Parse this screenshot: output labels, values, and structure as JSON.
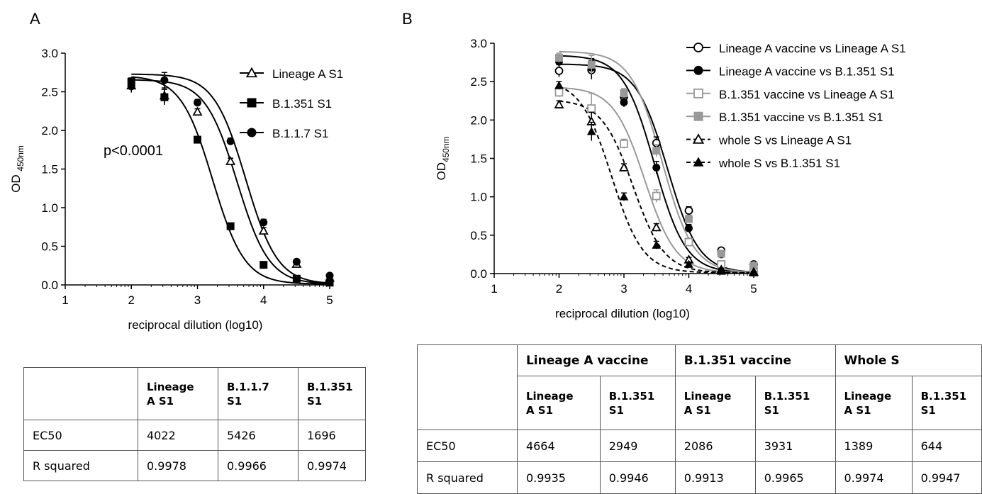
{
  "panel_a": {
    "letter": "A",
    "annotation": "p<0.0001",
    "table": {
      "headers": [
        "",
        "Lineage\nA S1",
        "B.1.1.7\nS1",
        "B.1.351\nS1"
      ],
      "rows": [
        {
          "label": "EC50",
          "values": [
            "4022",
            "5426",
            "1696"
          ]
        },
        {
          "label": "R squared",
          "values": [
            "0.9978",
            "0.9966",
            "0.9974"
          ]
        }
      ]
    }
  },
  "panel_b": {
    "letter": "B",
    "table": {
      "groups": [
        "Lineage A vaccine",
        "B.1.351 vaccine",
        "Whole S"
      ],
      "subheaders": [
        "Lineage\nA S1",
        "B.1.351\nS1",
        "Lineage\nA S1",
        "B.1.351\nS1",
        "Lineage\nA S1",
        "B.1.351\nS1"
      ],
      "rows": [
        {
          "label": "EC50",
          "values": [
            "4664",
            "2949",
            "2086",
            "3931",
            "1389",
            "644"
          ]
        },
        {
          "label": "R squared",
          "values": [
            "0.9935",
            "0.9946",
            "0.9913",
            "0.9965",
            "0.9974",
            "0.9947"
          ]
        }
      ]
    }
  },
  "chart_data": [
    {
      "type": "line",
      "panel": "A",
      "xlabel": "reciprocal dilution (log10)",
      "ylabel": "OD 450nm",
      "xlim": [
        1,
        5
      ],
      "ylim": [
        0,
        3.0
      ],
      "xticks": [
        "1",
        "2",
        "3",
        "4",
        "5"
      ],
      "yticks": [
        "0.0",
        "0.5",
        "1.0",
        "1.5",
        "2.0",
        "2.5",
        "3.0"
      ],
      "legend_position": "top-right",
      "series": [
        {
          "name": "Lineage A S1",
          "marker": "triangle-open",
          "color": "#000000",
          "x": [
            2,
            2.5,
            3,
            3.5,
            4,
            4.5,
            5
          ],
          "y": [
            2.58,
            2.45,
            2.24,
            1.6,
            0.7,
            0.27,
            0.09
          ],
          "err": [
            0.06,
            0.1,
            0.04,
            0.04,
            0.04,
            0.03,
            0.02
          ],
          "ec50_log": 3.6
        },
        {
          "name": "B.1.351 S1",
          "marker": "square-filled",
          "color": "#000000",
          "x": [
            2,
            2.5,
            3,
            3.5,
            4,
            4.5,
            5
          ],
          "y": [
            2.63,
            2.43,
            1.88,
            0.76,
            0.26,
            0.08,
            0.03
          ],
          "err": [
            0.05,
            0.1,
            0.04,
            0.04,
            0.03,
            0.02,
            0.02
          ],
          "ec50_log": 3.23
        },
        {
          "name": "B.1.1.7 S1",
          "marker": "circle-filled",
          "color": "#000000",
          "x": [
            2,
            2.5,
            3,
            3.5,
            4,
            4.5,
            5
          ],
          "y": [
            2.57,
            2.65,
            2.36,
            1.86,
            0.81,
            0.3,
            0.12
          ],
          "err": [
            0.08,
            0.1,
            0.04,
            0.04,
            0.04,
            0.03,
            0.02
          ],
          "ec50_log": 3.73
        }
      ]
    },
    {
      "type": "line",
      "panel": "B",
      "xlabel": "reciprocal dilution (log10)",
      "ylabel": "OD450nm",
      "xlim": [
        1,
        5
      ],
      "ylim": [
        0,
        3.0
      ],
      "xticks": [
        "1",
        "2",
        "3",
        "4",
        "5"
      ],
      "yticks": [
        "0.0",
        "0.5",
        "1.0",
        "1.5",
        "2.0",
        "2.5",
        "3.0"
      ],
      "legend_position": "top-right",
      "series": [
        {
          "name": "Lineage A vaccine vs Lineage A S1",
          "marker": "circle-open",
          "color": "#000000",
          "dashed": false,
          "x": [
            2,
            2.5,
            3,
            3.5,
            4,
            4.5,
            5
          ],
          "y": [
            2.64,
            2.65,
            2.3,
            1.7,
            0.82,
            0.3,
            0.12
          ],
          "err": [
            0.08,
            0.12,
            0.06,
            0.08,
            0.05,
            0.03,
            0.02
          ],
          "ec50_log": 3.67
        },
        {
          "name": "Lineage A vaccine vs B.1.351 S1",
          "marker": "circle-filled",
          "color": "#000000",
          "dashed": false,
          "x": [
            2,
            2.5,
            3,
            3.5,
            4,
            4.5,
            5
          ],
          "y": [
            2.76,
            2.68,
            2.23,
            1.38,
            0.59,
            0.25,
            0.09
          ],
          "err": [
            0.06,
            0.12,
            0.06,
            0.08,
            0.05,
            0.03,
            0.02
          ],
          "ec50_log": 3.47
        },
        {
          "name": "B.1.351 vaccine vs Lineage A S1",
          "marker": "square-open",
          "color": "#999999",
          "dashed": false,
          "x": [
            2,
            2.5,
            3,
            3.5,
            4,
            4.5,
            5
          ],
          "y": [
            2.36,
            2.15,
            1.69,
            1.01,
            0.41,
            0.12,
            0.04
          ],
          "err": [
            0.06,
            0.2,
            0.06,
            0.08,
            0.05,
            0.03,
            0.02
          ],
          "ec50_log": 3.32
        },
        {
          "name": "B.1.351 vaccine vs B.1.351 S1",
          "marker": "square-filled",
          "color": "#999999",
          "dashed": false,
          "x": [
            2,
            2.5,
            3,
            3.5,
            4,
            4.5,
            5
          ],
          "y": [
            2.81,
            2.72,
            2.35,
            1.6,
            0.71,
            0.26,
            0.1
          ],
          "err": [
            0.06,
            0.12,
            0.06,
            0.08,
            0.05,
            0.03,
            0.02
          ],
          "ec50_log": 3.59
        },
        {
          "name": "whole S vs Lineage A S1",
          "marker": "triangle-open",
          "color": "#000000",
          "dashed": true,
          "x": [
            2,
            2.5,
            3,
            3.5,
            4,
            4.5,
            5
          ],
          "y": [
            2.2,
            1.98,
            1.38,
            0.6,
            0.18,
            0.05,
            0.02
          ],
          "err": [
            0.05,
            0.12,
            0.05,
            0.05,
            0.03,
            0.02,
            0.01
          ],
          "ec50_log": 3.14
        },
        {
          "name": "whole S vs B.1.351 S1",
          "marker": "triangle-filled",
          "color": "#000000",
          "dashed": true,
          "x": [
            2,
            2.5,
            3,
            3.5,
            4,
            4.5,
            5
          ],
          "y": [
            2.45,
            1.85,
            1.0,
            0.37,
            0.12,
            0.03,
            0.01
          ],
          "err": [
            0.05,
            0.12,
            0.05,
            0.05,
            0.03,
            0.02,
            0.01
          ],
          "ec50_log": 2.81
        }
      ]
    }
  ]
}
